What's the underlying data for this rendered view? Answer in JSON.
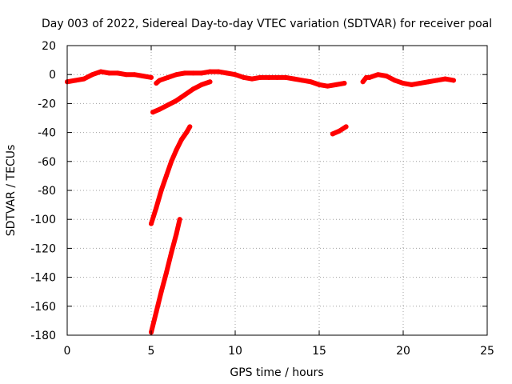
{
  "chart_data": {
    "type": "scatter",
    "title": "Day 003 of 2022, Sidereal Day-to-day VTEC variation (SDTVAR) for receiver poal",
    "xlabel": "GPS time / hours",
    "ylabel": "SDTVAR / TECUs",
    "xlim": [
      0,
      25
    ],
    "ylim": [
      -180,
      20
    ],
    "xticks": [
      "0",
      "5",
      "10",
      "15",
      "20",
      "25"
    ],
    "yticks": [
      "20",
      "0",
      "-20",
      "-40",
      "-60",
      "-80",
      "-100",
      "-120",
      "-140",
      "-160",
      "-180"
    ],
    "grid": true,
    "legend": "none",
    "color": "#ff0000",
    "series": [
      {
        "x": [
          0,
          0.5,
          1.0,
          1.5,
          2.0,
          2.5,
          3.0,
          3.5,
          4.0,
          4.5,
          5.0
        ],
        "y": [
          -5,
          -4,
          -3,
          0,
          2,
          1,
          1,
          0,
          0,
          -1,
          -2
        ]
      },
      {
        "x": [
          5.3,
          5.5,
          6.0,
          6.5,
          7.0,
          7.5,
          8.0,
          8.5,
          9.0,
          9.5,
          10.0,
          10.5,
          11.0,
          11.5,
          12.0,
          12.5,
          13.0,
          13.5,
          14.0,
          14.5,
          15.0,
          15.5,
          16.0,
          16.5
        ],
        "y": [
          -6,
          -4,
          -2,
          0,
          1,
          1,
          1,
          2,
          2,
          1,
          0,
          -2,
          -3,
          -2,
          -2,
          -2,
          -2,
          -3,
          -4,
          -5,
          -7,
          -8,
          -7,
          -6
        ]
      },
      {
        "x": [
          5.1,
          5.5,
          6.0,
          6.5,
          7.0,
          7.5,
          8.0,
          8.5
        ],
        "y": [
          -26,
          -24,
          -21,
          -18,
          -14,
          -10,
          -7,
          -5
        ]
      },
      {
        "x": [
          5.0,
          5.3,
          5.6,
          5.9,
          6.2,
          6.5,
          6.8,
          7.1,
          7.3
        ],
        "y": [
          -103,
          -92,
          -80,
          -70,
          -60,
          -52,
          -45,
          -40,
          -36
        ]
      },
      {
        "x": [
          5.0,
          5.3,
          5.6,
          5.9,
          6.2,
          6.5,
          6.7
        ],
        "y": [
          -178,
          -164,
          -150,
          -137,
          -123,
          -110,
          -100
        ]
      },
      {
        "x": [
          15.8,
          16.2,
          16.6
        ],
        "y": [
          -41,
          -39,
          -36
        ]
      },
      {
        "x": [
          17.6,
          17.8,
          18.0,
          18.5,
          19.0,
          19.5,
          20.0,
          20.5,
          21.0,
          21.5,
          22.0,
          22.5,
          23.0
        ],
        "y": [
          -5,
          -2,
          -2,
          0,
          -1,
          -4,
          -6,
          -7,
          -6,
          -5,
          -4,
          -3,
          -4
        ]
      }
    ]
  }
}
